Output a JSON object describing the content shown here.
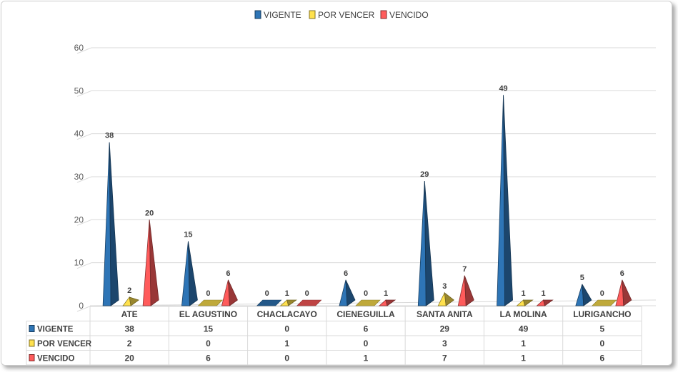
{
  "chart_data": {
    "type": "bar",
    "style": "3d-cone",
    "categories": [
      "ATE",
      "EL AGUSTINO",
      "CHACLACAYO",
      "CIENEGUILLA",
      "SANTA ANITA",
      "LA MOLINA",
      "LURIGANCHO"
    ],
    "series": [
      {
        "name": "VIGENTE",
        "values": [
          38,
          15,
          0,
          6,
          29,
          49,
          5
        ],
        "color": "#2E75B6"
      },
      {
        "name": "POR VENCER",
        "values": [
          2,
          0,
          1,
          0,
          3,
          1,
          0
        ],
        "color": "#FFE14D"
      },
      {
        "name": "VENCIDO",
        "values": [
          20,
          6,
          0,
          1,
          7,
          1,
          6
        ],
        "color": "#FF5B5B"
      }
    ],
    "ylim": [
      0,
      60
    ],
    "yticks": [
      0,
      10,
      20,
      30,
      40,
      50,
      60
    ],
    "legend_position": "top-center",
    "grid": true,
    "data_table": true
  }
}
